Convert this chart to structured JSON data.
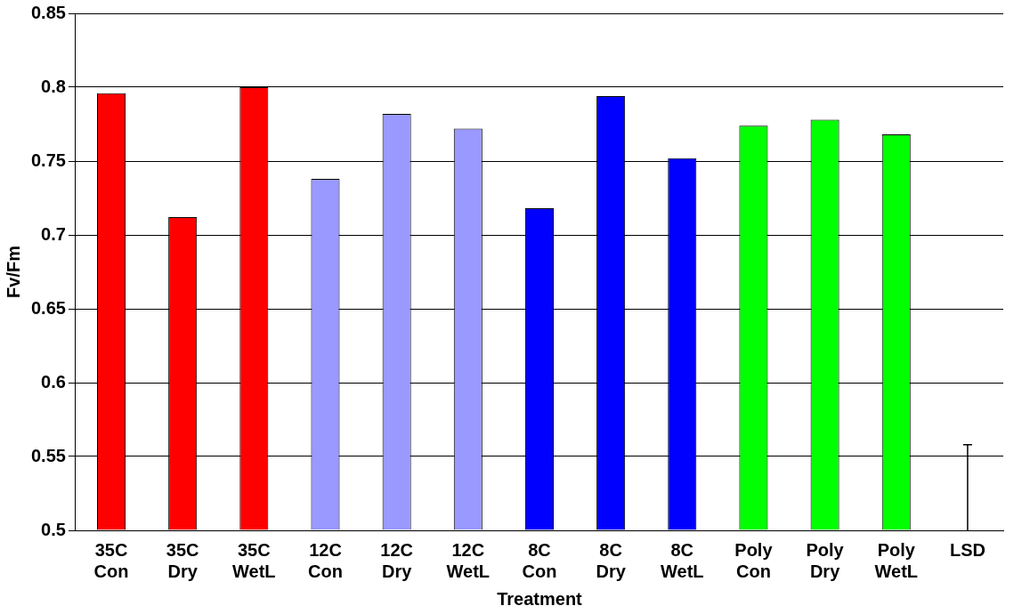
{
  "chart_data": {
    "type": "bar",
    "xlabel": "Treatment",
    "ylabel": "Fv/Fm",
    "categories": [
      "35C Con",
      "35C Dry",
      "35C WetL",
      "12C Con",
      "12C Dry",
      "12C WetL",
      "8C Con",
      "8C Dry",
      "8C WetL",
      "Poly Con",
      "Poly Dry",
      "Poly WetL",
      "LSD"
    ],
    "values": [
      0.796,
      0.712,
      0.8,
      0.738,
      0.782,
      0.772,
      0.718,
      0.794,
      0.752,
      0.774,
      0.778,
      0.768,
      0.5
    ],
    "colors": [
      "#ff0000",
      "#ff0000",
      "#ff0000",
      "#9999ff",
      "#9999ff",
      "#9999ff",
      "#0000ff",
      "#0000ff",
      "#0000ff",
      "#00ff00",
      "#00ff00",
      "#00ff00",
      "#ffffff"
    ],
    "errors": [
      null,
      null,
      null,
      null,
      null,
      null,
      null,
      null,
      null,
      null,
      null,
      null,
      [
        0.5,
        0.558
      ]
    ],
    "ylim": [
      0.5,
      0.85
    ],
    "yticks": [
      0.5,
      0.55,
      0.6,
      0.65,
      0.7,
      0.75,
      0.8,
      0.85
    ],
    "grid": "y",
    "legend": false
  }
}
